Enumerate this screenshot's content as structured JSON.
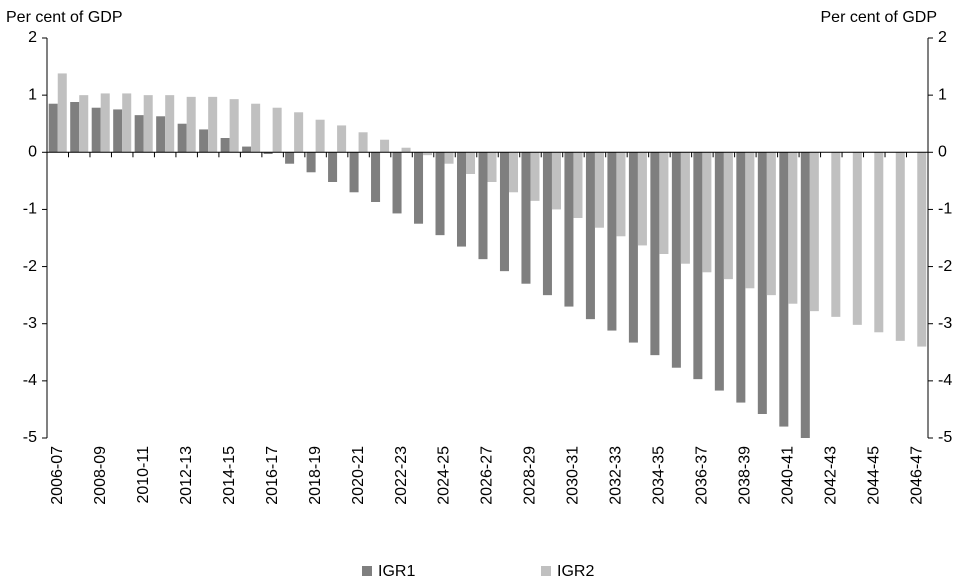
{
  "chart_data": {
    "type": "bar",
    "y_label": "Per cent of GDP",
    "y2_label": "Per cent of GDP",
    "categories": [
      "2006-07",
      null,
      "2008-09",
      null,
      "2010-11",
      null,
      "2012-13",
      null,
      "2014-15",
      null,
      "2016-17",
      null,
      "2018-19",
      null,
      "2020-21",
      null,
      "2022-23",
      null,
      "2024-25",
      null,
      "2026-27",
      null,
      "2028-29",
      null,
      "2030-31",
      null,
      "2032-33",
      null,
      "2034-35",
      null,
      "2036-37",
      null,
      "2038-39",
      null,
      "2040-41",
      null,
      "2042-43",
      null,
      "2044-45",
      null,
      "2046-47"
    ],
    "series": [
      {
        "name": "IGR1",
        "color": "#7f7f7f",
        "values": [
          0.85,
          0.88,
          0.78,
          0.75,
          0.65,
          0.63,
          0.5,
          0.4,
          0.25,
          0.1,
          -0.03,
          -0.2,
          -0.35,
          -0.52,
          -0.7,
          -0.87,
          -1.07,
          -1.25,
          -1.45,
          -1.65,
          -1.87,
          -2.08,
          -2.3,
          -2.5,
          -2.7,
          -2.92,
          -3.12,
          -3.33,
          -3.55,
          -3.77,
          -3.97,
          -4.17,
          -4.38,
          -4.58,
          -4.8,
          -5.0,
          null,
          null,
          null,
          null,
          null
        ]
      },
      {
        "name": "IGR2",
        "color": "#c0c0c0",
        "values": [
          1.38,
          1.0,
          1.03,
          1.03,
          1.0,
          1.0,
          0.97,
          0.97,
          0.93,
          0.85,
          0.78,
          0.7,
          0.57,
          0.47,
          0.35,
          0.22,
          0.08,
          -0.05,
          -0.2,
          -0.38,
          -0.52,
          -0.7,
          -0.85,
          -1.0,
          -1.15,
          -1.32,
          -1.47,
          -1.63,
          -1.78,
          -1.95,
          -2.1,
          -2.22,
          -2.38,
          -2.5,
          -2.65,
          -2.78,
          -2.88,
          -3.02,
          -3.15,
          -3.3,
          -3.4
        ]
      }
    ],
    "ylim": [
      -5,
      2
    ],
    "yticks": [
      -5,
      -4,
      -3,
      -2,
      -1,
      0,
      1,
      2
    ],
    "y2lim": [
      -5,
      2
    ],
    "y2ticks": [
      -5,
      -4,
      -3,
      -2,
      -1,
      0,
      1,
      2
    ]
  }
}
